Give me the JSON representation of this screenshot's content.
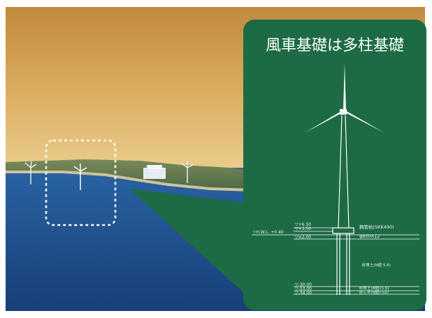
{
  "panel": {
    "title": "風車基礎は多柱基礎"
  },
  "levels": {
    "top": "▽+6.50",
    "mid": "▽+3.50",
    "hwl": "▽H.W.L. +0.40",
    "low": "▽±2.00",
    "d1": "▽-30.00",
    "d2": "▽-33.00",
    "d3": "▽-34.00"
  },
  "annotations": {
    "pile_spec": "鋼管杭(SKK490)",
    "pile_dim": "φ800X12",
    "soil_1": "砂質土(N値 5.6)",
    "soil_2": "砂質土(N値15.6)",
    "soil_3": "砂レキ(N値>50)"
  },
  "colors": {
    "panel": "#1c6b45",
    "sea": "#1d4f8c",
    "sky_top": "#c9974a",
    "sky_bottom": "#e4c27c",
    "line": "#ffffff"
  }
}
